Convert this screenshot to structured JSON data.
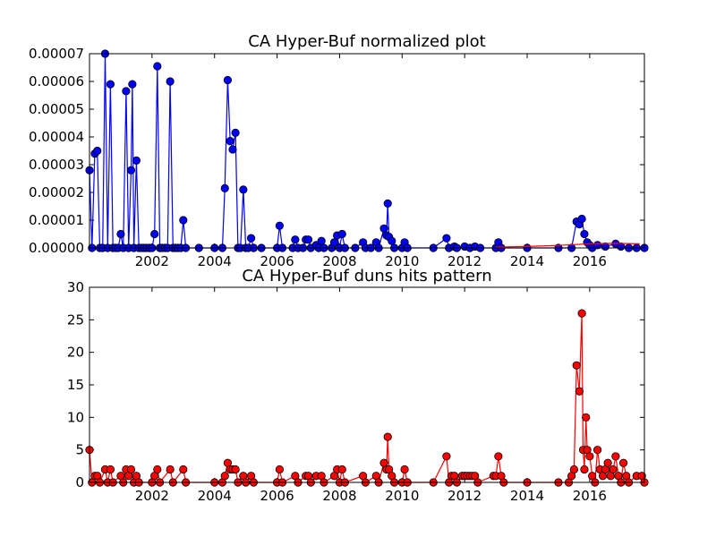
{
  "chart_data": [
    {
      "type": "line",
      "title": "CA Hyper-Buf normalized plot",
      "xlabel": "",
      "ylabel": "",
      "x_ticks": [
        "2002",
        "2004",
        "2006",
        "2008",
        "2010",
        "2012",
        "2014",
        "2016"
      ],
      "y_ticks": [
        "0.00000",
        "0.00001",
        "0.00002",
        "0.00003",
        "0.00004",
        "0.00005",
        "0.00006",
        "0.00007"
      ],
      "xlim": [
        2000.0,
        2017.75
      ],
      "ylim": [
        0,
        7e-05
      ],
      "grid": false,
      "colors": {
        "series": "#0000ff",
        "trend": "#ff0000"
      },
      "series": [
        {
          "points": [
            [
              2000.0,
              2.8e-05
            ],
            [
              2000.08,
              0.0
            ],
            [
              2000.17,
              3.4e-05
            ],
            [
              2000.25,
              3.5e-05
            ],
            [
              2000.33,
              0.0
            ],
            [
              2000.42,
              0.0
            ],
            [
              2000.5,
              7e-05
            ],
            [
              2000.58,
              0.0
            ],
            [
              2000.67,
              5.9e-05
            ],
            [
              2000.75,
              0.0
            ],
            [
              2000.83,
              0.0
            ],
            [
              2000.92,
              0.0
            ],
            [
              2001.0,
              5e-06
            ],
            [
              2001.08,
              0.0
            ],
            [
              2001.17,
              5.65e-05
            ],
            [
              2001.25,
              0.0
            ],
            [
              2001.33,
              2.8e-05
            ],
            [
              2001.37,
              5.9e-05
            ],
            [
              2001.42,
              0.0
            ],
            [
              2001.5,
              3.15e-05
            ],
            [
              2001.58,
              0.0
            ],
            [
              2001.67,
              0.0
            ],
            [
              2001.75,
              0.0
            ],
            [
              2001.83,
              0.0
            ],
            [
              2001.92,
              0.0
            ],
            [
              2002.0,
              0.0
            ],
            [
              2002.08,
              5e-06
            ],
            [
              2002.17,
              6.55e-05
            ],
            [
              2002.25,
              0.0
            ],
            [
              2002.33,
              0.0
            ],
            [
              2002.42,
              0.0
            ],
            [
              2002.5,
              0.0
            ],
            [
              2002.58,
              6e-05
            ],
            [
              2002.67,
              0.0
            ],
            [
              2002.75,
              0.0
            ],
            [
              2002.83,
              0.0
            ],
            [
              2002.92,
              0.0
            ],
            [
              2003.0,
              1e-05
            ],
            [
              2003.08,
              0.0
            ],
            [
              2003.5,
              0.0
            ],
            [
              2004.0,
              0.0
            ],
            [
              2004.25,
              0.0
            ],
            [
              2004.33,
              2.15e-05
            ],
            [
              2004.42,
              6.05e-05
            ],
            [
              2004.5,
              3.85e-05
            ],
            [
              2004.58,
              3.55e-05
            ],
            [
              2004.67,
              4.15e-05
            ],
            [
              2004.75,
              0.0
            ],
            [
              2004.83,
              0.0
            ],
            [
              2004.92,
              2.1e-05
            ],
            [
              2005.0,
              0.0
            ],
            [
              2005.08,
              0.0
            ],
            [
              2005.17,
              3.5e-06
            ],
            [
              2005.25,
              0.0
            ],
            [
              2005.5,
              0.0
            ],
            [
              2006.0,
              0.0
            ],
            [
              2006.08,
              8e-06
            ],
            [
              2006.17,
              0.0
            ],
            [
              2006.5,
              0.0
            ],
            [
              2006.58,
              3e-06
            ],
            [
              2006.67,
              0.0
            ],
            [
              2006.83,
              0.0
            ],
            [
              2006.92,
              3e-06
            ],
            [
              2007.0,
              3e-06
            ],
            [
              2007.08,
              0.0
            ],
            [
              2007.25,
              1e-06
            ],
            [
              2007.33,
              0.0
            ],
            [
              2007.42,
              2.5e-06
            ],
            [
              2007.5,
              0.0
            ],
            [
              2007.75,
              0.0
            ],
            [
              2007.83,
              2e-06
            ],
            [
              2007.92,
              4.5e-06
            ],
            [
              2008.0,
              0.0
            ],
            [
              2008.08,
              5e-06
            ],
            [
              2008.17,
              0.0
            ],
            [
              2008.5,
              0.0
            ],
            [
              2008.75,
              2e-06
            ],
            [
              2008.83,
              0.0
            ],
            [
              2009.0,
              0.0
            ],
            [
              2009.17,
              2e-06
            ],
            [
              2009.25,
              0.0
            ],
            [
              2009.42,
              7e-06
            ],
            [
              2009.5,
              4.5e-06
            ],
            [
              2009.54,
              1.6e-05
            ],
            [
              2009.58,
              4e-06
            ],
            [
              2009.67,
              2.5e-06
            ],
            [
              2009.75,
              0.0
            ],
            [
              2010.0,
              0.0
            ],
            [
              2010.08,
              2e-06
            ],
            [
              2010.17,
              0.0
            ],
            [
              2011.0,
              0.0
            ],
            [
              2011.42,
              3.5e-06
            ],
            [
              2011.5,
              0.0
            ],
            [
              2011.67,
              5e-07
            ],
            [
              2011.75,
              0.0
            ],
            [
              2012.0,
              5e-07
            ],
            [
              2012.17,
              0.0
            ],
            [
              2012.33,
              5e-07
            ],
            [
              2012.5,
              0.0
            ],
            [
              2013.0,
              0.0
            ],
            [
              2013.08,
              2e-06
            ],
            [
              2013.17,
              0.0
            ],
            [
              2014.0,
              0.0
            ],
            [
              2015.0,
              0.0
            ],
            [
              2015.42,
              0.0
            ],
            [
              2015.58,
              9.5e-06
            ],
            [
              2015.67,
              8.5e-06
            ],
            [
              2015.75,
              1.05e-05
            ],
            [
              2015.83,
              5e-06
            ],
            [
              2015.92,
              2e-06
            ],
            [
              2016.0,
              1e-06
            ],
            [
              2016.08,
              0.0
            ],
            [
              2016.25,
              1e-06
            ],
            [
              2016.5,
              5e-07
            ],
            [
              2016.83,
              1.5e-06
            ],
            [
              2017.0,
              5e-07
            ],
            [
              2017.25,
              0.0
            ],
            [
              2017.5,
              0.0
            ],
            [
              2017.75,
              0.0
            ]
          ]
        }
      ],
      "trend_line": [
        [
          2013.0,
          3e-07
        ],
        [
          2014.0,
          5e-07
        ],
        [
          2015.0,
          9e-07
        ],
        [
          2015.5,
          1.2e-06
        ],
        [
          2016.0,
          1.5e-06
        ],
        [
          2016.5,
          1.6e-06
        ],
        [
          2017.0,
          1.6e-06
        ],
        [
          2017.6,
          1.5e-06
        ]
      ]
    },
    {
      "type": "line",
      "title": "CA Hyper-Buf duns hits pattern",
      "xlabel": "",
      "ylabel": "",
      "x_ticks": [
        "2002",
        "2004",
        "2006",
        "2008",
        "2010",
        "2012",
        "2014",
        "2016"
      ],
      "y_ticks": [
        "0",
        "5",
        "10",
        "15",
        "20",
        "25",
        "30"
      ],
      "xlim": [
        2000.0,
        2017.75
      ],
      "ylim": [
        0,
        30
      ],
      "grid": false,
      "colors": {
        "series": "#ff0000"
      },
      "series": [
        {
          "points": [
            [
              2000.0,
              5
            ],
            [
              2000.08,
              0
            ],
            [
              2000.17,
              1
            ],
            [
              2000.25,
              1
            ],
            [
              2000.33,
              0
            ],
            [
              2000.5,
              2
            ],
            [
              2000.58,
              0
            ],
            [
              2000.67,
              2
            ],
            [
              2000.75,
              0
            ],
            [
              2001.0,
              1
            ],
            [
              2001.08,
              0
            ],
            [
              2001.17,
              2
            ],
            [
              2001.25,
              1
            ],
            [
              2001.33,
              2
            ],
            [
              2001.42,
              0
            ],
            [
              2001.5,
              1
            ],
            [
              2001.58,
              0
            ],
            [
              2002.0,
              0
            ],
            [
              2002.08,
              1
            ],
            [
              2002.17,
              2
            ],
            [
              2002.25,
              0
            ],
            [
              2002.58,
              2
            ],
            [
              2002.67,
              0
            ],
            [
              2003.0,
              2
            ],
            [
              2003.08,
              0
            ],
            [
              2004.0,
              0
            ],
            [
              2004.25,
              0
            ],
            [
              2004.33,
              1
            ],
            [
              2004.42,
              3
            ],
            [
              2004.5,
              2
            ],
            [
              2004.58,
              2
            ],
            [
              2004.67,
              2
            ],
            [
              2004.75,
              0
            ],
            [
              2004.92,
              1
            ],
            [
              2005.0,
              0
            ],
            [
              2005.17,
              1
            ],
            [
              2005.25,
              0
            ],
            [
              2006.0,
              0
            ],
            [
              2006.08,
              2
            ],
            [
              2006.17,
              0
            ],
            [
              2006.58,
              1
            ],
            [
              2006.67,
              0
            ],
            [
              2006.92,
              1
            ],
            [
              2007.0,
              1
            ],
            [
              2007.08,
              0
            ],
            [
              2007.25,
              1
            ],
            [
              2007.42,
              1
            ],
            [
              2007.5,
              0
            ],
            [
              2007.83,
              1
            ],
            [
              2007.92,
              2
            ],
            [
              2008.0,
              0
            ],
            [
              2008.08,
              2
            ],
            [
              2008.17,
              0
            ],
            [
              2008.75,
              1
            ],
            [
              2008.83,
              0
            ],
            [
              2009.17,
              1
            ],
            [
              2009.25,
              0
            ],
            [
              2009.42,
              3
            ],
            [
              2009.5,
              2
            ],
            [
              2009.54,
              7
            ],
            [
              2009.58,
              2
            ],
            [
              2009.67,
              1
            ],
            [
              2009.75,
              0
            ],
            [
              2010.0,
              0
            ],
            [
              2010.08,
              2
            ],
            [
              2010.17,
              0
            ],
            [
              2011.0,
              0
            ],
            [
              2011.42,
              4
            ],
            [
              2011.5,
              0
            ],
            [
              2011.58,
              1
            ],
            [
              2011.67,
              1
            ],
            [
              2011.75,
              0
            ],
            [
              2011.92,
              1
            ],
            [
              2012.0,
              1
            ],
            [
              2012.08,
              1
            ],
            [
              2012.17,
              1
            ],
            [
              2012.25,
              1
            ],
            [
              2012.33,
              1
            ],
            [
              2012.42,
              0
            ],
            [
              2012.92,
              1
            ],
            [
              2013.0,
              1
            ],
            [
              2013.08,
              4
            ],
            [
              2013.17,
              1
            ],
            [
              2013.25,
              0
            ],
            [
              2014.0,
              0
            ],
            [
              2015.0,
              0
            ],
            [
              2015.33,
              0
            ],
            [
              2015.42,
              1
            ],
            [
              2015.5,
              2
            ],
            [
              2015.58,
              18
            ],
            [
              2015.67,
              14
            ],
            [
              2015.75,
              26
            ],
            [
              2015.79,
              5
            ],
            [
              2015.83,
              2
            ],
            [
              2015.88,
              10
            ],
            [
              2015.92,
              5
            ],
            [
              2016.0,
              4
            ],
            [
              2016.08,
              1
            ],
            [
              2016.17,
              0
            ],
            [
              2016.25,
              5
            ],
            [
              2016.33,
              2
            ],
            [
              2016.42,
              1
            ],
            [
              2016.5,
              2
            ],
            [
              2016.58,
              3
            ],
            [
              2016.67,
              1
            ],
            [
              2016.75,
              2
            ],
            [
              2016.83,
              4
            ],
            [
              2016.92,
              1
            ],
            [
              2017.0,
              0
            ],
            [
              2017.08,
              3
            ],
            [
              2017.17,
              1
            ],
            [
              2017.25,
              0
            ],
            [
              2017.5,
              1
            ],
            [
              2017.67,
              1
            ],
            [
              2017.75,
              0
            ]
          ]
        }
      ]
    }
  ]
}
